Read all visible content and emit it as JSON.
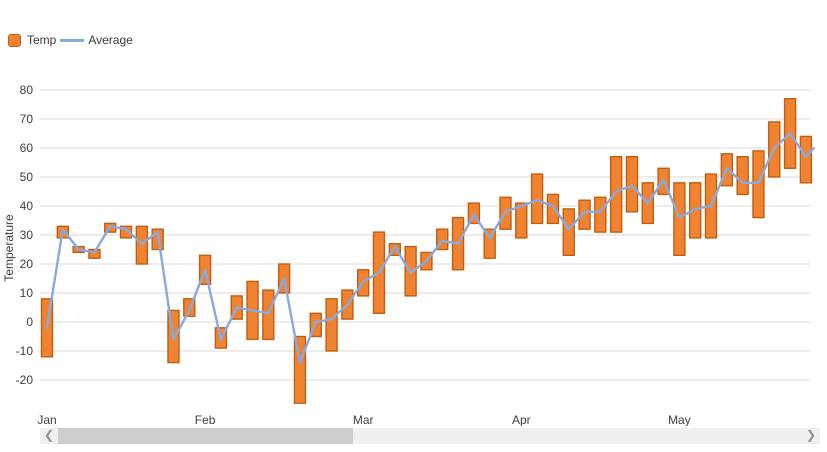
{
  "legend": {
    "temp_label": "Temp",
    "average_label": "Average"
  },
  "scrollbar": {
    "left_glyph": "❮",
    "right_glyph": "❯"
  },
  "colors": {
    "bar_fill": "#F08332",
    "bar_border": "#C05F10",
    "line": "#89A9DE",
    "gridline": "#D9D9D9",
    "text": "#404040",
    "scroll_track": "#EFEFEF",
    "scroll_thumb": "#CDCDCD"
  },
  "chart_data": {
    "type": "bar",
    "subtype": "range-column-with-line",
    "title": "",
    "xlabel": "",
    "ylabel": "Temperature",
    "y_ticks": [
      80,
      70,
      60,
      50,
      40,
      30,
      20,
      10,
      0,
      -10,
      -20
    ],
    "ylim": [
      -30,
      80
    ],
    "grid": "horizontal-only",
    "legend_position": "top-left",
    "x_tick_labels": [
      "Jan",
      "Feb",
      "Mar",
      "Apr",
      "May"
    ],
    "x_tick_indices": [
      0,
      10,
      20,
      30,
      40
    ],
    "series": [
      {
        "name": "Temp",
        "type": "range-bar",
        "points_low_high": [
          [
            -12,
            8
          ],
          [
            29,
            33
          ],
          [
            24,
            26
          ],
          [
            22,
            25
          ],
          [
            31,
            34
          ],
          [
            29,
            33
          ],
          [
            20,
            33
          ],
          [
            25,
            32
          ],
          [
            -14,
            4
          ],
          [
            2,
            8
          ],
          [
            13,
            23
          ],
          [
            -9,
            -2
          ],
          [
            1,
            9
          ],
          [
            -6,
            14
          ],
          [
            -6,
            11
          ],
          [
            10,
            20
          ],
          [
            -28,
            -5
          ],
          [
            -5,
            3
          ],
          [
            -10,
            8
          ],
          [
            1,
            11
          ],
          [
            9,
            18
          ],
          [
            3,
            31
          ],
          [
            23,
            27
          ],
          [
            9,
            26
          ],
          [
            18,
            24
          ],
          [
            25,
            32
          ],
          [
            18,
            36
          ],
          [
            34,
            41
          ],
          [
            22,
            32
          ],
          [
            32,
            43
          ],
          [
            29,
            41
          ],
          [
            34,
            51
          ],
          [
            34,
            44
          ],
          [
            23,
            39
          ],
          [
            32,
            42
          ],
          [
            31,
            43
          ],
          [
            31,
            57
          ],
          [
            38,
            57
          ],
          [
            34,
            48
          ],
          [
            44,
            53
          ],
          [
            23,
            48
          ],
          [
            29,
            48
          ],
          [
            29,
            51
          ],
          [
            47,
            58
          ],
          [
            44,
            57
          ],
          [
            36,
            59
          ],
          [
            50,
            69
          ],
          [
            53,
            77
          ],
          [
            48,
            64
          ]
        ]
      },
      {
        "name": "Average",
        "type": "line",
        "values": [
          -2,
          32,
          25,
          24,
          33,
          32,
          27,
          31,
          -6,
          4,
          18,
          -6,
          5,
          4,
          3,
          15,
          -14,
          0,
          1,
          6,
          14,
          17,
          26,
          17,
          21,
          28,
          27,
          37,
          29,
          38,
          40,
          42,
          40,
          32,
          38,
          38,
          45,
          47,
          41,
          49,
          36,
          39,
          40,
          53,
          48,
          48,
          60,
          65,
          57
        ],
        "clipped_next_value": 60
      }
    ]
  }
}
